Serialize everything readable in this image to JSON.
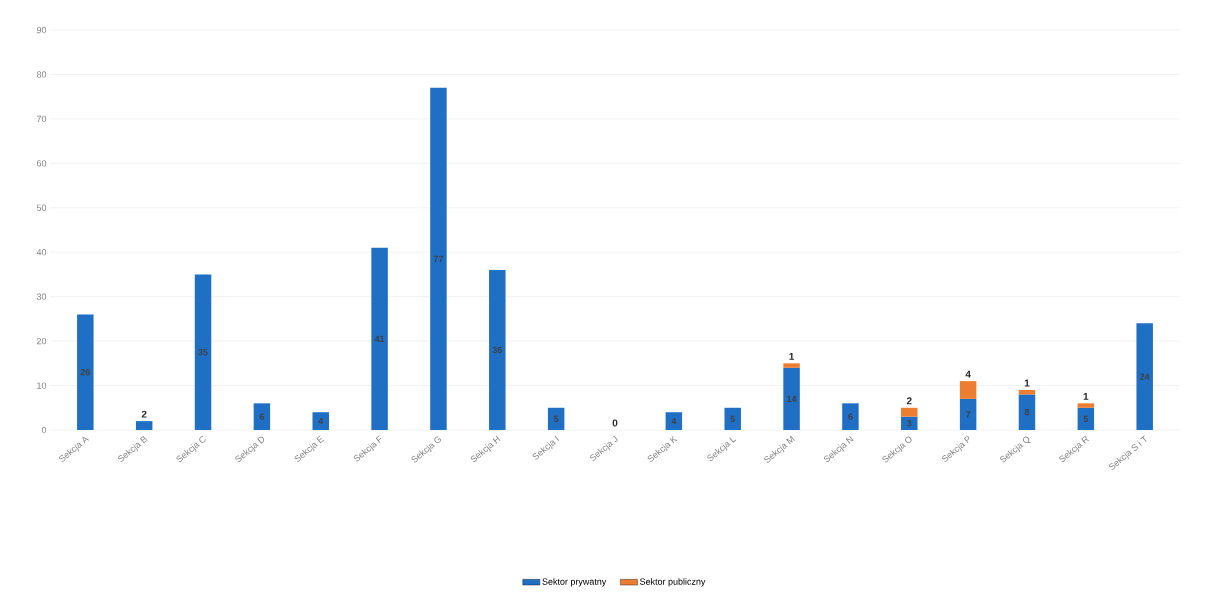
{
  "chart_data": {
    "type": "bar",
    "stacked": true,
    "categories": [
      "Sekcja A",
      "Sekcja B",
      "Sekcja C",
      "Sekcja D",
      "Sekcja E",
      "Sekcja F",
      "Sekcja G",
      "Sekcja H",
      "Sekcja I",
      "Sekcja J",
      "Sekcja K",
      "Sekcja L",
      "Sekcja M",
      "Sekcja N",
      "Sekcja O",
      "Sekcja P",
      "Sekcja Q",
      "Sekcja R",
      "Sekcja S i T"
    ],
    "series": [
      {
        "name": "Sektor prywatny",
        "color": "#1f6fc5",
        "values": [
          26,
          2,
          35,
          6,
          4,
          41,
          77,
          36,
          5,
          null,
          4,
          5,
          14,
          6,
          3,
          7,
          8,
          5,
          24
        ]
      },
      {
        "name": "Sektor publiczny",
        "color": "#ed7d31",
        "values": [
          null,
          null,
          null,
          null,
          null,
          null,
          null,
          null,
          null,
          0,
          null,
          null,
          1,
          null,
          2,
          4,
          1,
          1,
          null
        ]
      }
    ],
    "ylim": [
      0,
      90
    ],
    "yticks": [
      0,
      10,
      20,
      30,
      40,
      50,
      60,
      70,
      80,
      90
    ],
    "grid": "y",
    "legend": "bottom",
    "data_labels": true
  }
}
